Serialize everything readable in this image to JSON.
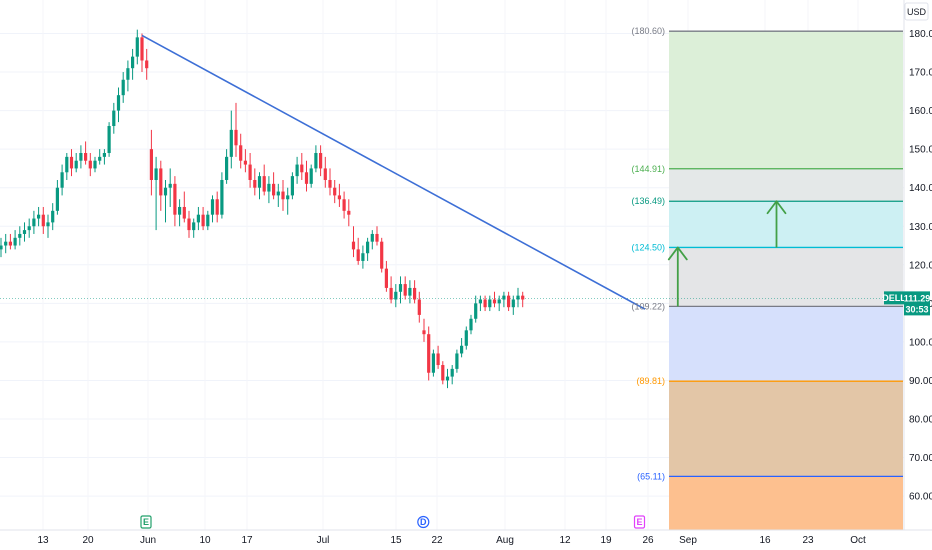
{
  "chart_data": {
    "type": "candlestick",
    "currency": "USD",
    "ticker": "DELL",
    "last_price": "111.29",
    "countdown": "30:53",
    "x_ticks": [
      "13",
      "20",
      "Jun",
      "10",
      "17",
      "Jul",
      "15",
      "22",
      "Aug",
      "12",
      "19",
      "26",
      "Sep",
      "16",
      "23",
      "Oct"
    ],
    "y_ticks": [
      "180.00",
      "170.00",
      "160.00",
      "150.00",
      "140.00",
      "130.00",
      "120.00",
      "110.00",
      "100.00",
      "90.00",
      "80.00",
      "70.00",
      "60.00"
    ],
    "ylim": [
      50,
      185
    ],
    "fib_levels": [
      {
        "value": 180.6,
        "label": "(180.60)",
        "color": "#787b86"
      },
      {
        "value": 144.91,
        "label": "(144.91)",
        "color": "#4caf50"
      },
      {
        "value": 136.49,
        "label": "(136.49)",
        "color": "#089981"
      },
      {
        "value": 124.5,
        "label": "(124.50)",
        "color": "#00bcd4"
      },
      {
        "value": 109.22,
        "label": "(109.22)",
        "color": "#787b86"
      },
      {
        "value": 89.81,
        "label": "(89.81)",
        "color": "#ff9800"
      },
      {
        "value": 65.11,
        "label": "(65.11)",
        "color": "#2962ff"
      }
    ],
    "zones": [
      {
        "from": 144.91,
        "to": 180.6,
        "color": "#dcefd8"
      },
      {
        "from": 136.49,
        "to": 144.91,
        "color": "#e4e8e8"
      },
      {
        "from": 124.5,
        "to": 136.49,
        "color": "#cdf0f3"
      },
      {
        "from": 109.22,
        "to": 124.5,
        "color": "#e4e5e7"
      },
      {
        "from": 89.81,
        "to": 109.22,
        "color": "#d6e0fc"
      },
      {
        "from": 65.11,
        "to": 89.81,
        "color": "#e3c6a7"
      },
      {
        "from": 50,
        "to": 65.11,
        "color": "#fdc08f"
      }
    ],
    "trendline": {
      "from": {
        "day": 0,
        "price": 179.5
      },
      "to": {
        "day": 107,
        "price": 108.5
      },
      "color": "#3d6fd6"
    },
    "events": [
      {
        "label": "E",
        "day": 0,
        "color": "#22a06b"
      },
      {
        "label": "D",
        "day": 59,
        "color": "#2962ff"
      },
      {
        "label": "E",
        "day": 105,
        "color": "#e040fb"
      }
    ],
    "arrows": [
      {
        "day": 114,
        "from": 109.22,
        "to": 124.5,
        "color": "#43a047"
      },
      {
        "day": 135,
        "from": 124.5,
        "to": 136.49,
        "color": "#43a047"
      }
    ],
    "candles": [
      [
        124,
        127,
        122,
        125
      ],
      [
        125,
        128,
        123,
        126
      ],
      [
        126,
        128,
        124,
        125
      ],
      [
        125,
        129,
        124,
        127
      ],
      [
        127,
        130,
        125,
        128
      ],
      [
        128,
        131,
        126,
        129
      ],
      [
        129,
        132,
        127,
        130
      ],
      [
        130,
        134,
        128,
        132
      ],
      [
        132,
        135,
        130,
        133
      ],
      [
        133,
        135,
        128,
        130
      ],
      [
        130,
        133,
        127,
        131
      ],
      [
        131,
        136,
        129,
        134
      ],
      [
        134,
        142,
        133,
        140
      ],
      [
        140,
        146,
        138,
        144
      ],
      [
        144,
        149,
        142,
        148
      ],
      [
        148,
        150,
        143,
        145
      ],
      [
        145,
        149,
        144,
        147
      ],
      [
        147,
        151,
        145,
        149
      ],
      [
        149,
        152,
        146,
        147
      ],
      [
        147,
        149,
        143,
        145
      ],
      [
        145,
        148,
        144,
        147
      ],
      [
        147,
        150,
        146,
        148
      ],
      [
        148,
        150,
        146,
        149
      ],
      [
        149,
        157,
        148,
        156
      ],
      [
        156,
        162,
        154,
        160
      ],
      [
        160,
        166,
        157,
        164
      ],
      [
        164,
        170,
        162,
        168
      ],
      [
        168,
        173,
        165,
        171
      ],
      [
        171,
        176,
        168,
        174
      ],
      [
        174,
        181,
        172,
        179
      ],
      [
        179,
        180,
        170,
        173
      ],
      [
        173,
        176,
        168,
        171
      ],
      [
        150,
        155,
        138,
        142
      ],
      [
        142,
        148,
        129,
        145
      ],
      [
        145,
        147,
        134,
        138
      ],
      [
        138,
        142,
        131,
        140
      ],
      [
        140,
        145,
        135,
        141
      ],
      [
        141,
        143,
        130,
        133
      ],
      [
        133,
        137,
        130,
        135
      ],
      [
        135,
        139,
        131,
        132
      ],
      [
        132,
        134,
        127,
        129
      ],
      [
        129,
        132,
        127,
        131
      ],
      [
        131,
        135,
        129,
        133
      ],
      [
        133,
        135,
        129,
        130
      ],
      [
        130,
        134,
        129,
        133
      ],
      [
        133,
        138,
        131,
        137
      ],
      [
        137,
        139,
        131,
        133
      ],
      [
        133,
        144,
        132,
        142
      ],
      [
        142,
        150,
        141,
        148
      ],
      [
        148,
        160,
        145,
        155
      ],
      [
        155,
        162,
        148,
        151
      ],
      [
        151,
        154,
        145,
        147
      ],
      [
        147,
        150,
        144,
        146
      ],
      [
        146,
        149,
        140,
        142
      ],
      [
        142,
        145,
        138,
        140
      ],
      [
        140,
        144,
        137,
        143
      ],
      [
        143,
        146,
        138,
        139
      ],
      [
        139,
        143,
        136,
        141
      ],
      [
        141,
        144,
        137,
        138
      ],
      [
        138,
        141,
        135,
        139
      ],
      [
        139,
        142,
        134,
        137
      ],
      [
        137,
        140,
        133,
        138
      ],
      [
        138,
        144,
        137,
        143
      ],
      [
        143,
        148,
        141,
        146
      ],
      [
        146,
        149,
        142,
        144
      ],
      [
        144,
        147,
        139,
        141
      ],
      [
        141,
        146,
        140,
        145
      ],
      [
        145,
        151,
        144,
        149
      ],
      [
        149,
        151,
        143,
        145
      ],
      [
        145,
        148,
        140,
        142
      ],
      [
        142,
        145,
        138,
        140
      ],
      [
        140,
        142,
        136,
        138
      ],
      [
        138,
        141,
        135,
        137
      ],
      [
        137,
        139,
        132,
        134
      ],
      [
        134,
        137,
        130,
        133
      ],
      [
        126,
        130,
        122,
        124
      ],
      [
        124,
        127,
        120,
        121
      ],
      [
        121,
        125,
        119,
        123
      ],
      [
        123,
        127,
        121,
        126
      ],
      [
        126,
        129,
        124,
        128
      ],
      [
        128,
        130,
        125,
        126
      ],
      [
        126,
        127,
        118,
        119
      ],
      [
        119,
        121,
        113,
        114
      ],
      [
        114,
        117,
        110,
        111
      ],
      [
        111,
        115,
        109,
        113
      ],
      [
        113,
        117,
        110,
        115
      ],
      [
        115,
        117,
        111,
        112
      ],
      [
        112,
        116,
        110,
        114
      ],
      [
        114,
        116,
        110,
        111
      ],
      [
        111,
        113,
        105,
        107
      ],
      [
        103,
        106,
        100,
        102
      ],
      [
        102,
        104,
        90,
        92
      ],
      [
        92,
        98,
        91,
        97
      ],
      [
        97,
        99,
        93,
        94
      ],
      [
        94,
        95,
        89,
        90
      ],
      [
        90,
        93,
        88,
        91
      ],
      [
        91,
        94,
        89,
        93
      ],
      [
        93,
        98,
        92,
        97
      ],
      [
        97,
        101,
        96,
        99
      ],
      [
        99,
        104,
        98,
        103
      ],
      [
        103,
        107,
        102,
        106
      ],
      [
        106,
        112,
        105,
        110
      ],
      [
        110,
        112,
        108,
        111
      ],
      [
        111,
        112,
        108,
        109
      ],
      [
        109,
        112,
        108,
        111
      ],
      [
        111,
        113,
        109,
        110
      ],
      [
        110,
        112,
        108,
        111
      ],
      [
        111,
        113,
        109,
        112
      ],
      [
        112,
        113,
        108,
        109
      ],
      [
        109,
        112,
        107,
        111
      ],
      [
        111,
        114,
        109,
        112
      ],
      [
        112,
        113,
        109,
        111
      ]
    ]
  }
}
